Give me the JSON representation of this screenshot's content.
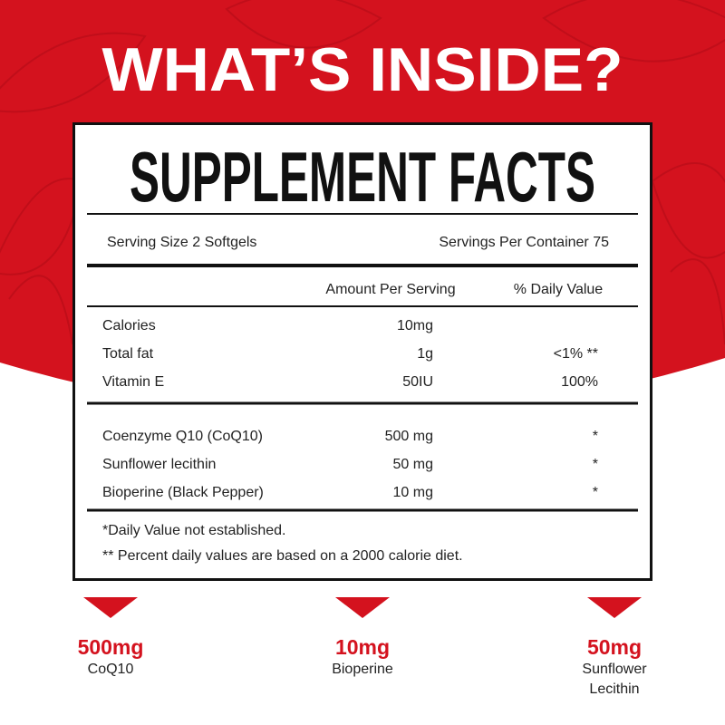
{
  "header": {
    "title": "WHAT’S INSIDE?"
  },
  "facts": {
    "title": "SUPPLEMENT FACTS",
    "serving_size": "Serving Size 2 Softgels",
    "servings_per_container": "Servings Per Container 75",
    "columns": [
      "Amount Per Serving",
      "% Daily Value"
    ],
    "groups": [
      [
        {
          "name": "Calories",
          "amount": "10mg"
        },
        {
          "name": "Total fat",
          "amount": "1g",
          "daily_value": "<1% **"
        },
        {
          "name": "Vitamin E",
          "amount": "50IU",
          "daily_value": "100%"
        }
      ],
      [
        {
          "name": "Coenzyme Q10 (CoQ10)",
          "amount": "500 mg",
          "daily_value": "*"
        },
        {
          "name": "Sunflower lecithin",
          "amount": "50 mg",
          "daily_value": "*"
        },
        {
          "name": "Bioperine (Black Pepper)",
          "amount": "10 mg",
          "daily_value": "*"
        }
      ]
    ],
    "footnotes": [
      "*Daily Value not established.",
      "** Percent daily values are based on a 2000 calorie diet."
    ]
  },
  "highlights": [
    {
      "value": "500mg",
      "label": [
        "CoQ10"
      ]
    },
    {
      "value": "10mg",
      "label": [
        "Bioperine"
      ]
    },
    {
      "value": "50mg",
      "label": [
        "Sunflower",
        "Lecithin"
      ]
    }
  ]
}
